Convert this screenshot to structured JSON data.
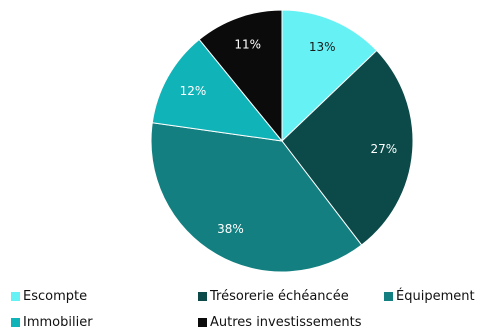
{
  "chart_data": {
    "type": "pie",
    "title": "",
    "categories": [
      "Escompte",
      "Trésorerie échéancée",
      "Équipement",
      "Immobilier",
      "Autres investissements"
    ],
    "values": [
      13,
      27,
      38,
      12,
      11
    ],
    "value_labels": [
      "13%",
      "27%",
      "38%",
      "12%",
      "11%"
    ],
    "colors": [
      "#66f2f5",
      "#0b4a48",
      "#137f80",
      "#10b3b8",
      "#0b0b0b"
    ],
    "label_colors": [
      "#1a1a1a",
      "#ffffff",
      "#ffffff",
      "#ffffff",
      "#ffffff"
    ],
    "start_angle": "12 o'clock",
    "direction": "clockwise",
    "legend_position": "bottom"
  }
}
